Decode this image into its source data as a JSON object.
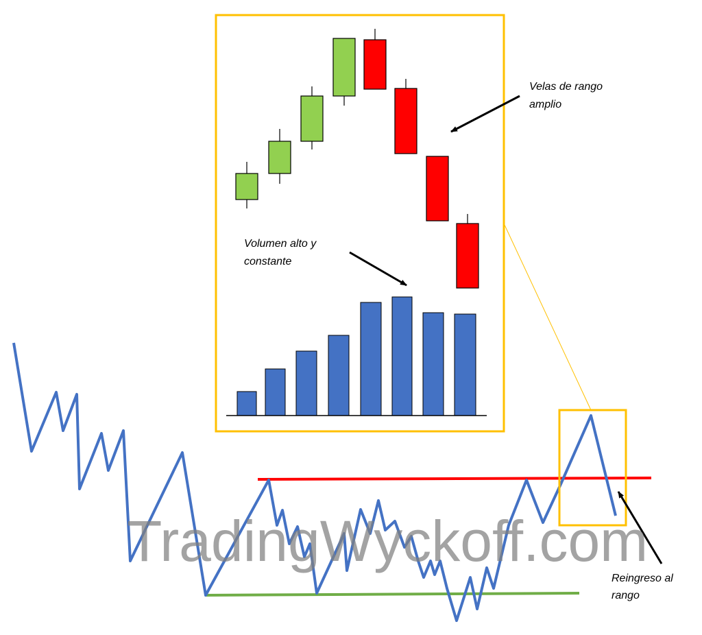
{
  "annotations": {
    "wide_range": [
      "Velas de rango",
      "amplio"
    ],
    "volume": [
      "Volumen alto y",
      "constante"
    ],
    "reentry": [
      "Reingreso al",
      "rango"
    ]
  },
  "watermark": "TradingWyckoff.com",
  "colors": {
    "price_line": "#4472c4",
    "resistance": "#ff0000",
    "support": "#70ad47",
    "frame": "#ffc000",
    "bull_candle": "#92d050",
    "bear_candle": "#ff0000",
    "volume_bar": "#4472c4",
    "text": "#000000"
  },
  "candles": [
    {
      "dir": "up"
    },
    {
      "dir": "up"
    },
    {
      "dir": "up"
    },
    {
      "dir": "up"
    },
    {
      "dir": "down"
    },
    {
      "dir": "down"
    },
    {
      "dir": "down"
    },
    {
      "dir": "down"
    }
  ],
  "volume_count": 8
}
